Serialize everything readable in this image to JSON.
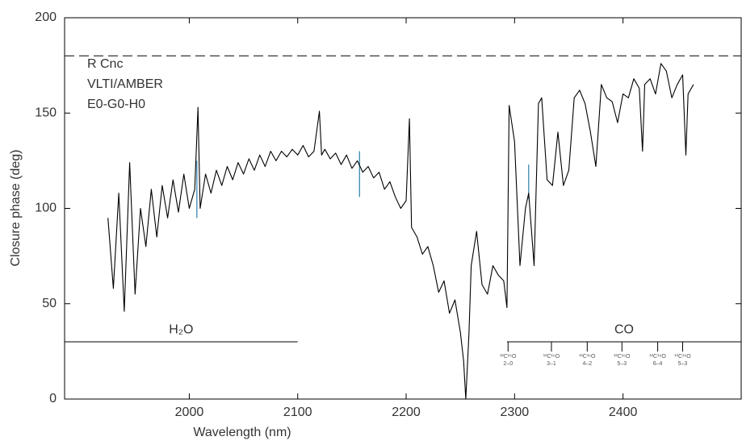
{
  "chart_data": {
    "type": "line",
    "xlabel": "Wavelength (nm)",
    "ylabel": "Closure phase (deg)",
    "xlim": [
      1885,
      2509
    ],
    "ylim": [
      0,
      200
    ],
    "xticks": [
      2000,
      2100,
      2200,
      2300,
      2400
    ],
    "yticks": [
      0,
      50,
      100,
      150,
      200
    ],
    "reference_line": {
      "y": 180,
      "style": "dashed"
    },
    "annotations": [
      "R Cnc",
      "VLTI/AMBER",
      "E0-G0-H0"
    ],
    "bands": [
      {
        "label": "H₂O",
        "x": [
          1885,
          2100
        ],
        "y": 30
      },
      {
        "label": "CO",
        "x": [
          2293,
          2509
        ],
        "y": 30
      }
    ],
    "co_lines": [
      {
        "x": 2294,
        "isotope": "¹²C¹⁶O",
        "transition": "2–0"
      },
      {
        "x": 2334,
        "isotope": "¹²C¹⁶O",
        "transition": "3–1"
      },
      {
        "x": 2367,
        "isotope": "¹²C¹⁶O",
        "transition": "4–2"
      },
      {
        "x": 2399,
        "isotope": "¹²C¹⁶O",
        "transition": "5–3"
      },
      {
        "x": 2432,
        "isotope": "¹²C¹⁶O",
        "transition": "6–4"
      },
      {
        "x": 2455,
        "isotope": "¹³C¹⁶O",
        "transition": "5–3"
      }
    ],
    "markers": {
      "color": "#2a7fa8",
      "items": [
        {
          "x": 2007,
          "y": [
            95,
            125
          ]
        },
        {
          "x": 2157,
          "y": [
            106,
            130
          ]
        },
        {
          "x": 2313,
          "y": [
            105,
            123
          ]
        }
      ]
    },
    "series": [
      {
        "color": "#000000",
        "x": [
          1925,
          1930,
          1935,
          1940,
          1945,
          1950,
          1955,
          1960,
          1965,
          1970,
          1975,
          1980,
          1985,
          1990,
          1995,
          2000,
          2005,
          2008,
          2010,
          2015,
          2020,
          2025,
          2030,
          2035,
          2040,
          2045,
          2050,
          2055,
          2060,
          2065,
          2070,
          2075,
          2080,
          2085,
          2090,
          2095,
          2100,
          2105,
          2110,
          2115,
          2120,
          2122,
          2125,
          2130,
          2135,
          2140,
          2145,
          2150,
          2155,
          2160,
          2165,
          2170,
          2175,
          2180,
          2185,
          2190,
          2195,
          2200,
          2203,
          2205,
          2210,
          2215,
          2220,
          2225,
          2230,
          2235,
          2240,
          2245,
          2250,
          2253,
          2255,
          2258,
          2260,
          2265,
          2270,
          2275,
          2280,
          2285,
          2290,
          2293,
          2295,
          2300,
          2305,
          2310,
          2313,
          2318,
          2322,
          2325,
          2330,
          2335,
          2340,
          2345,
          2350,
          2355,
          2360,
          2365,
          2370,
          2375,
          2380,
          2385,
          2390,
          2395,
          2400,
          2405,
          2410,
          2415,
          2418,
          2420,
          2425,
          2430,
          2435,
          2440,
          2445,
          2450,
          2455,
          2458,
          2460,
          2465
        ],
        "values": [
          95,
          58,
          108,
          46,
          124,
          55,
          100,
          80,
          110,
          85,
          112,
          95,
          115,
          98,
          118,
          100,
          110,
          153,
          100,
          118,
          108,
          120,
          112,
          122,
          115,
          124,
          118,
          126,
          120,
          128,
          122,
          130,
          125,
          130,
          127,
          131,
          128,
          133,
          127,
          130,
          151,
          128,
          131,
          126,
          129,
          123,
          128,
          121,
          125,
          119,
          122,
          116,
          119,
          110,
          114,
          106,
          100,
          104,
          147,
          90,
          85,
          76,
          80,
          70,
          56,
          62,
          45,
          52,
          35,
          20,
          0,
          35,
          70,
          88,
          60,
          55,
          70,
          65,
          62,
          48,
          154,
          135,
          70,
          100,
          108,
          70,
          155,
          158,
          115,
          112,
          140,
          112,
          120,
          158,
          162,
          155,
          140,
          122,
          165,
          158,
          156,
          145,
          160,
          158,
          168,
          163,
          130,
          165,
          168,
          160,
          176,
          172,
          158,
          165,
          170,
          128,
          160,
          165
        ]
      }
    ]
  }
}
